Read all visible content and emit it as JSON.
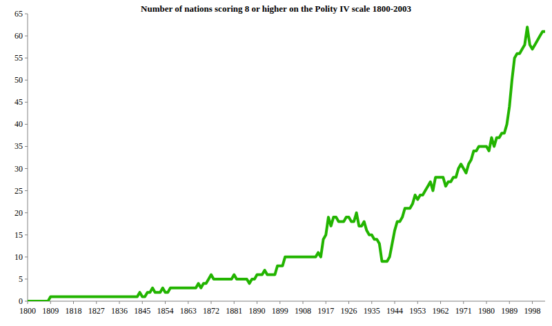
{
  "chart_data": {
    "type": "line",
    "title": "Number of nations scoring 8 or higher on the Polity IV scale 1800-2003",
    "x": [
      1800,
      1801,
      1802,
      1803,
      1804,
      1805,
      1806,
      1807,
      1808,
      1809,
      1810,
      1811,
      1812,
      1813,
      1814,
      1815,
      1816,
      1817,
      1818,
      1819,
      1820,
      1821,
      1822,
      1823,
      1824,
      1825,
      1826,
      1827,
      1828,
      1829,
      1830,
      1831,
      1832,
      1833,
      1834,
      1835,
      1836,
      1837,
      1838,
      1839,
      1840,
      1841,
      1842,
      1843,
      1844,
      1845,
      1846,
      1847,
      1848,
      1849,
      1850,
      1851,
      1852,
      1853,
      1854,
      1855,
      1856,
      1857,
      1858,
      1859,
      1860,
      1861,
      1862,
      1863,
      1864,
      1865,
      1866,
      1867,
      1868,
      1869,
      1870,
      1871,
      1872,
      1873,
      1874,
      1875,
      1876,
      1877,
      1878,
      1879,
      1880,
      1881,
      1882,
      1883,
      1884,
      1885,
      1886,
      1887,
      1888,
      1889,
      1890,
      1891,
      1892,
      1893,
      1894,
      1895,
      1896,
      1897,
      1898,
      1899,
      1900,
      1901,
      1902,
      1903,
      1904,
      1905,
      1906,
      1907,
      1908,
      1909,
      1910,
      1911,
      1912,
      1913,
      1914,
      1915,
      1916,
      1917,
      1918,
      1919,
      1920,
      1921,
      1922,
      1923,
      1924,
      1925,
      1926,
      1927,
      1928,
      1929,
      1930,
      1931,
      1932,
      1933,
      1934,
      1935,
      1936,
      1937,
      1938,
      1939,
      1940,
      1941,
      1942,
      1943,
      1944,
      1945,
      1946,
      1947,
      1948,
      1949,
      1950,
      1951,
      1952,
      1953,
      1954,
      1955,
      1956,
      1957,
      1958,
      1959,
      1960,
      1961,
      1962,
      1963,
      1964,
      1965,
      1966,
      1967,
      1968,
      1969,
      1970,
      1971,
      1972,
      1973,
      1974,
      1975,
      1976,
      1977,
      1978,
      1979,
      1980,
      1981,
      1982,
      1983,
      1984,
      1985,
      1986,
      1987,
      1988,
      1989,
      1990,
      1991,
      1992,
      1993,
      1994,
      1995,
      1996,
      1997,
      1998,
      1999,
      2000,
      2001,
      2002,
      2003
    ],
    "values": [
      0,
      0,
      0,
      0,
      0,
      0,
      0,
      0,
      0,
      1,
      1,
      1,
      1,
      1,
      1,
      1,
      1,
      1,
      1,
      1,
      1,
      1,
      1,
      1,
      1,
      1,
      1,
      1,
      1,
      1,
      1,
      1,
      1,
      1,
      1,
      1,
      1,
      1,
      1,
      1,
      1,
      1,
      1,
      1,
      2,
      1,
      1,
      2,
      2,
      3,
      2,
      2,
      2,
      3,
      2,
      2,
      3,
      3,
      3,
      3,
      3,
      3,
      3,
      3,
      3,
      3,
      3,
      4,
      3,
      4,
      4,
      5,
      6,
      5,
      5,
      5,
      5,
      5,
      5,
      5,
      5,
      6,
      5,
      5,
      5,
      5,
      5,
      4,
      5,
      5,
      6,
      6,
      6,
      7,
      6,
      6,
      6,
      6,
      8,
      8,
      8,
      10,
      10,
      10,
      10,
      10,
      10,
      10,
      10,
      10,
      10,
      10,
      10,
      10,
      11,
      10,
      14,
      15,
      19,
      17,
      19,
      19,
      18,
      18,
      18,
      19,
      19,
      18,
      18,
      20,
      17,
      17,
      18,
      16,
      15,
      15,
      14,
      14,
      13,
      9,
      9,
      9,
      10,
      13,
      16,
      18,
      18,
      19,
      21,
      21,
      21,
      22,
      24,
      23,
      24,
      24,
      25,
      26,
      27,
      25,
      28,
      28,
      28,
      28,
      26,
      27,
      27,
      28,
      28,
      30,
      31,
      30,
      29,
      31,
      32,
      34,
      34,
      35,
      35,
      35,
      35,
      34,
      37,
      35,
      37,
      37,
      38,
      38,
      40,
      44,
      50,
      55,
      56,
      56,
      57,
      58,
      62,
      58,
      57,
      58,
      59,
      60,
      61,
      61
    ],
    "color": "#22b400",
    "xlim": [
      1800,
      2003
    ],
    "xticks": [
      1800,
      1809,
      1818,
      1827,
      1836,
      1845,
      1854,
      1863,
      1872,
      1881,
      1890,
      1899,
      1908,
      1917,
      1926,
      1935,
      1944,
      1953,
      1962,
      1971,
      1980,
      1989,
      1998
    ],
    "ylim": [
      0,
      65
    ],
    "yticks": [
      0,
      5,
      10,
      15,
      20,
      25,
      30,
      35,
      40,
      45,
      50,
      55,
      60,
      65
    ],
    "grid": false
  }
}
